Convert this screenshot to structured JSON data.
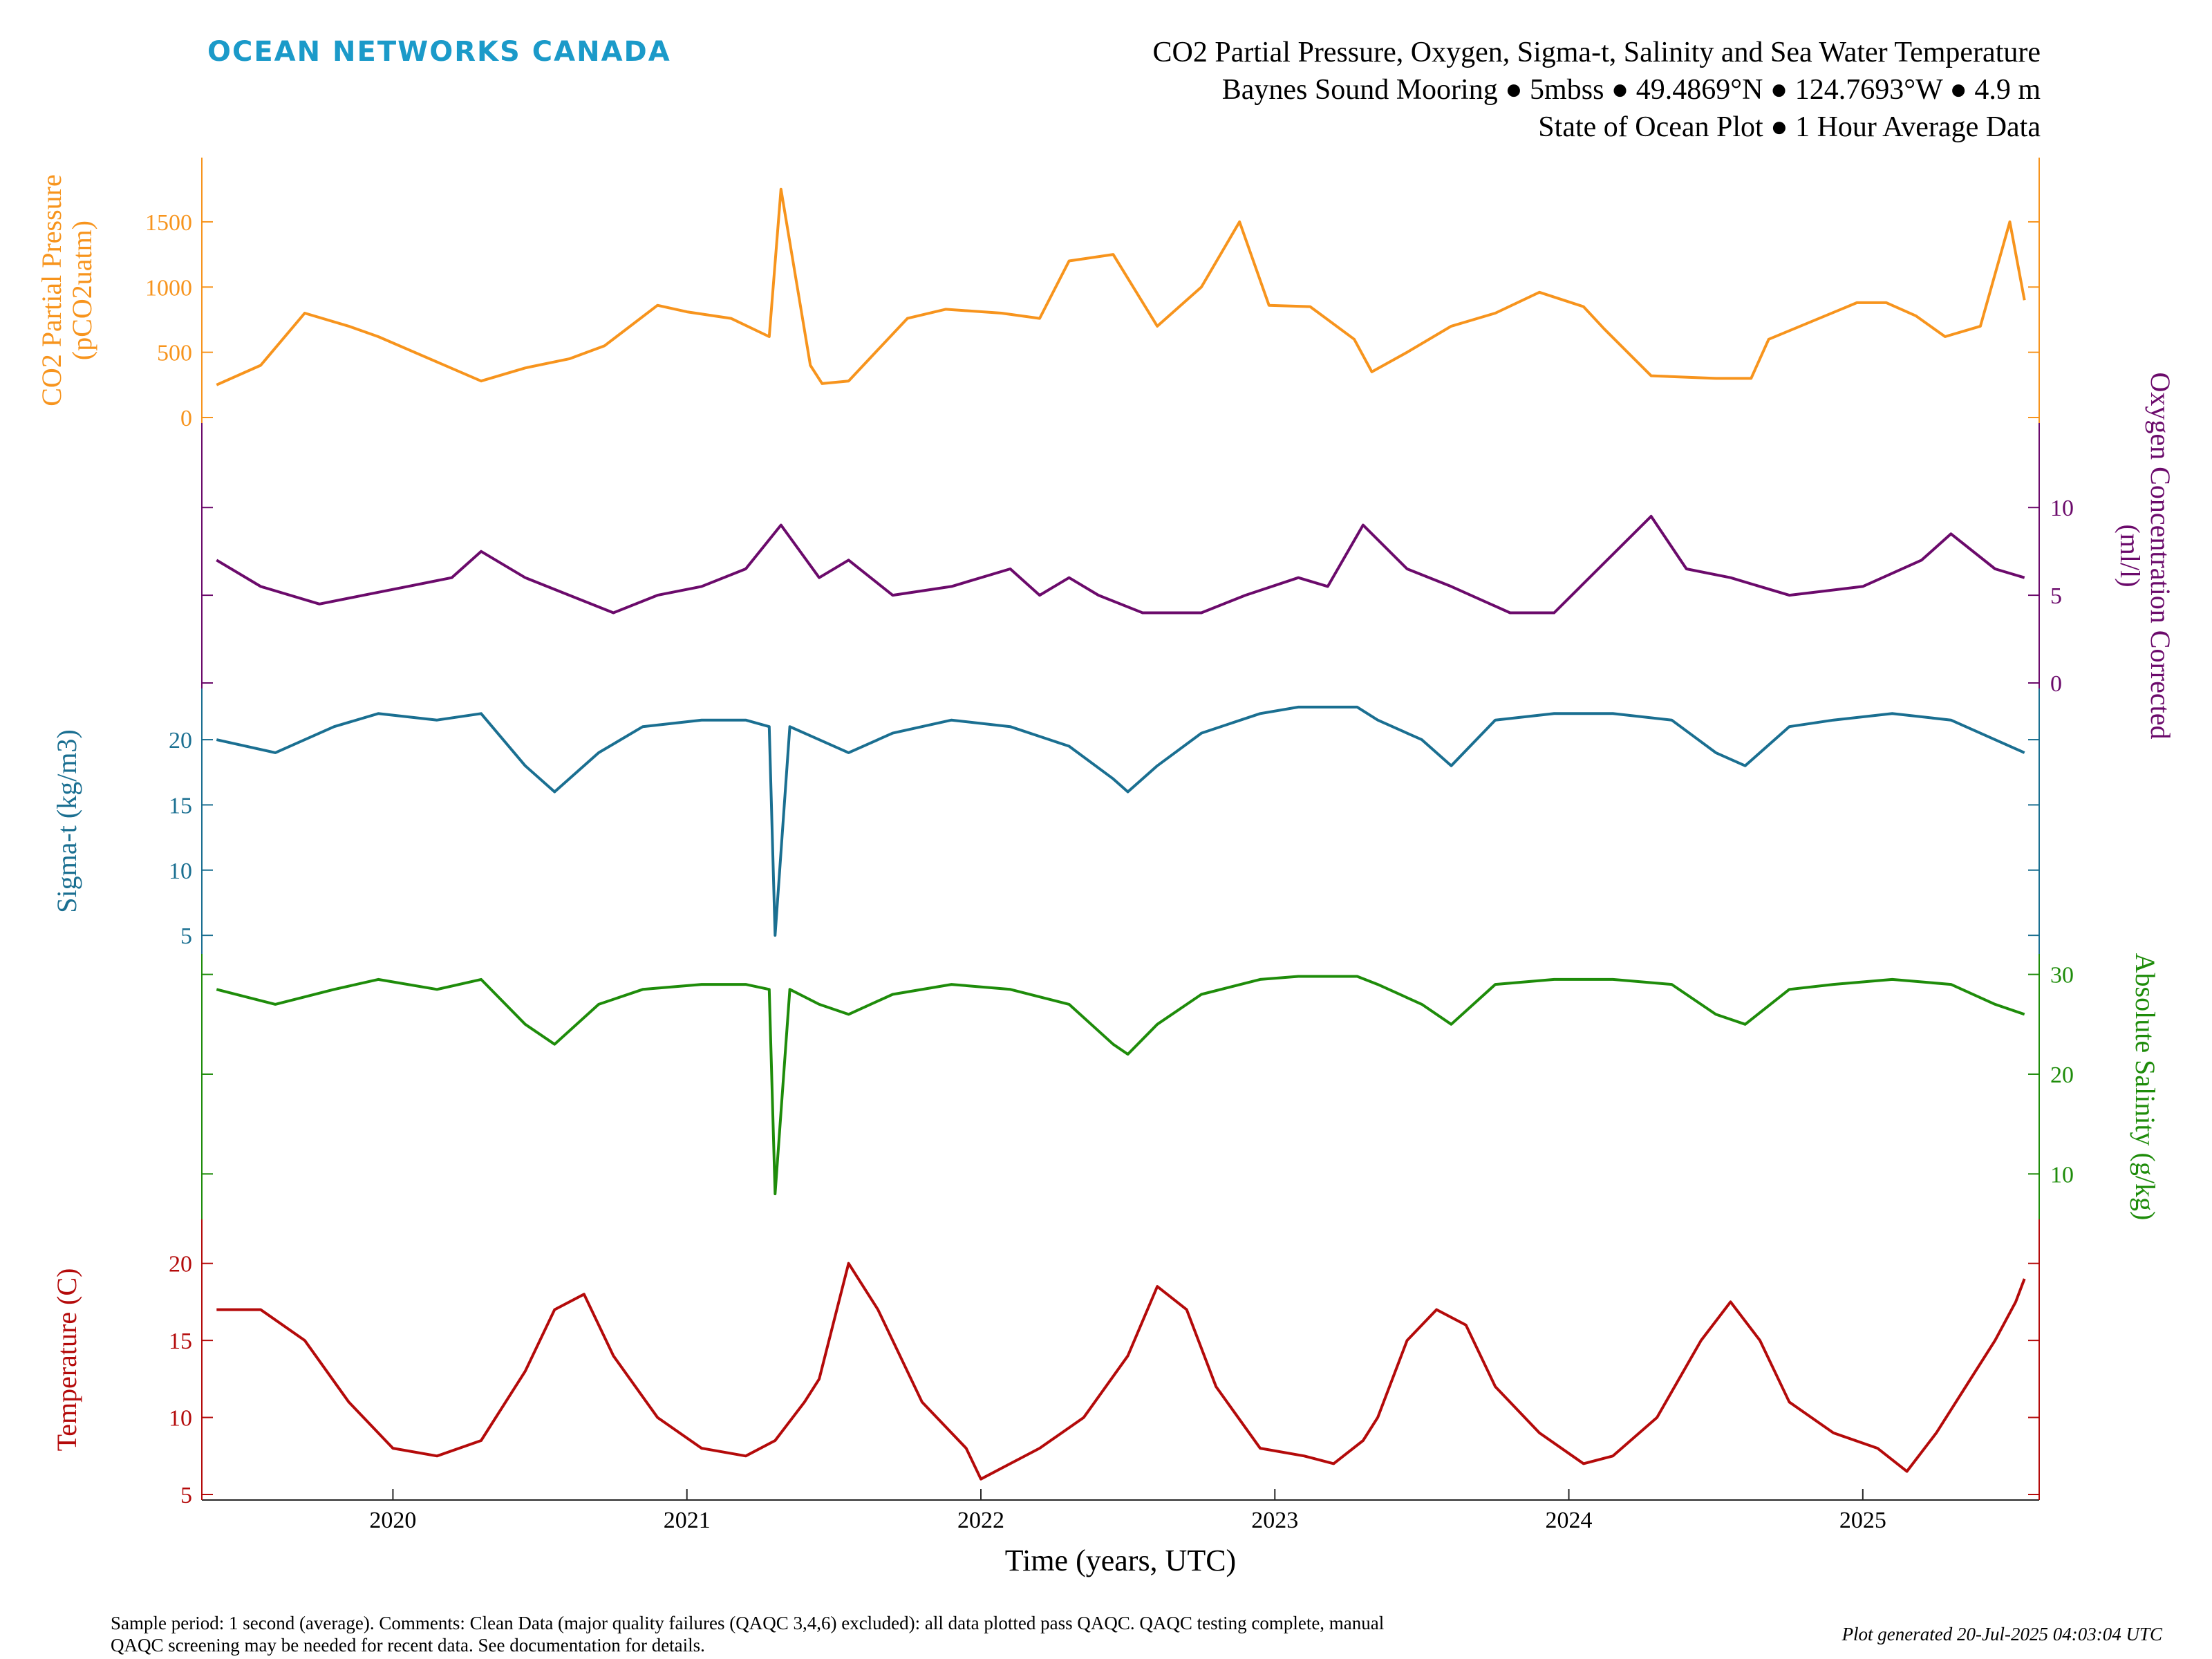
{
  "header": {
    "brand": "OCEAN NETWORKS CANADA",
    "title_line1": "CO2 Partial Pressure, Oxygen, Sigma-t, Salinity and Sea Water Temperature",
    "title_line2": "Baynes Sound Mooring ● 5mbss ● 49.4869°N ● 124.7693°W ● 4.9 m",
    "title_line3": "State of Ocean Plot ● 1 Hour Average Data"
  },
  "footer": {
    "note_line1": "Sample period: 1 second (average). Comments: Clean Data (major quality failures (QAQC 3,4,6) excluded): all data plotted pass QAQC. QAQC testing complete, manual",
    "note_line2": "QAQC screening may be needed for recent data. See documentation for details.",
    "generated": "Plot generated 20-Jul-2025 04:03:04 UTC"
  },
  "colors": {
    "co2": "#f7941d",
    "oxygen": "#6b0a6b",
    "sigma": "#1a6f91",
    "salinity": "#1e8c0a",
    "temperature": "#b40a0a",
    "brand": "#1b9ac9",
    "axis": "#262626"
  },
  "chart_data": [
    {
      "type": "line",
      "name": "co2",
      "ylabel_line1": "CO2 Partial Pressure",
      "ylabel_line2": "(pCO2uatm)",
      "axis_side": "left",
      "ylim": [
        0,
        1950
      ],
      "yticks": [
        0,
        500,
        1000,
        1500
      ],
      "series": [
        {
          "values": [
            [
              2019.4,
              250
            ],
            [
              2019.55,
              400
            ],
            [
              2019.7,
              800
            ],
            [
              2019.85,
              700
            ],
            [
              2019.95,
              620
            ],
            [
              2020.3,
              280
            ],
            [
              2020.45,
              380
            ],
            [
              2020.6,
              450
            ],
            [
              2020.72,
              550
            ],
            [
              2020.9,
              860
            ],
            [
              2021.0,
              810
            ],
            [
              2021.15,
              760
            ],
            [
              2021.28,
              620
            ],
            [
              2021.32,
              1750
            ],
            [
              2021.42,
              400
            ],
            [
              2021.46,
              260
            ],
            [
              2021.55,
              280
            ],
            [
              2021.65,
              520
            ],
            [
              2021.75,
              760
            ],
            [
              2021.88,
              830
            ],
            [
              2022.07,
              800
            ],
            [
              2022.2,
              760
            ],
            [
              2022.3,
              1200
            ],
            [
              2022.45,
              1250
            ],
            [
              2022.6,
              700
            ],
            [
              2022.75,
              1000
            ],
            [
              2022.88,
              1500
            ],
            [
              2022.98,
              860
            ],
            [
              2023.12,
              850
            ],
            [
              2023.27,
              600
            ],
            [
              2023.33,
              350
            ],
            [
              2023.45,
              500
            ],
            [
              2023.6,
              700
            ],
            [
              2023.75,
              800
            ],
            [
              2023.9,
              960
            ],
            [
              2024.05,
              850
            ],
            [
              2024.12,
              680
            ],
            [
              2024.28,
              320
            ],
            [
              2024.5,
              300
            ],
            [
              2024.62,
              300
            ],
            [
              2024.68,
              600
            ],
            [
              2024.98,
              880
            ],
            [
              2025.08,
              880
            ],
            [
              2025.18,
              780
            ],
            [
              2025.28,
              620
            ],
            [
              2025.4,
              700
            ],
            [
              2025.5,
              1500
            ],
            [
              2025.55,
              900
            ]
          ]
        }
      ]
    },
    {
      "type": "line",
      "name": "oxygen",
      "ylabel_line1": "Oxygen Concentration Corrected",
      "ylabel_line2": "(ml/l)",
      "axis_side": "right",
      "ylim": [
        0,
        14.5
      ],
      "yticks": [
        0,
        5,
        10
      ],
      "series": [
        {
          "values": [
            [
              2019.4,
              7
            ],
            [
              2019.55,
              5.5
            ],
            [
              2019.75,
              4.5
            ],
            [
              2019.9,
              5
            ],
            [
              2020.05,
              5.5
            ],
            [
              2020.2,
              6
            ],
            [
              2020.3,
              7.5
            ],
            [
              2020.45,
              6
            ],
            [
              2020.6,
              5
            ],
            [
              2020.75,
              4
            ],
            [
              2020.9,
              5
            ],
            [
              2021.05,
              5.5
            ],
            [
              2021.2,
              6.5
            ],
            [
              2021.32,
              9
            ],
            [
              2021.45,
              6
            ],
            [
              2021.55,
              7
            ],
            [
              2021.7,
              5
            ],
            [
              2021.9,
              5.5
            ],
            [
              2022.1,
              6.5
            ],
            [
              2022.2,
              5
            ],
            [
              2022.3,
              6
            ],
            [
              2022.4,
              5
            ],
            [
              2022.55,
              4
            ],
            [
              2022.75,
              4
            ],
            [
              2022.9,
              5
            ],
            [
              2023.08,
              6
            ],
            [
              2023.18,
              5.5
            ],
            [
              2023.3,
              9
            ],
            [
              2023.45,
              6.5
            ],
            [
              2023.6,
              5.5
            ],
            [
              2023.8,
              4
            ],
            [
              2023.95,
              4
            ],
            [
              2024.28,
              9.5
            ],
            [
              2024.4,
              6.5
            ],
            [
              2024.55,
              6
            ],
            [
              2024.75,
              5
            ],
            [
              2025.0,
              5.5
            ],
            [
              2025.2,
              7
            ],
            [
              2025.3,
              8.5
            ],
            [
              2025.45,
              6.5
            ],
            [
              2025.55,
              6
            ]
          ]
        }
      ]
    },
    {
      "type": "line",
      "name": "sigma",
      "ylabel_line1": "Sigma-t (kg/m3)",
      "ylabel_line2": "",
      "axis_side": "left",
      "ylim": [
        4,
        23.5
      ],
      "yticks": [
        5,
        10,
        15,
        20
      ],
      "series": [
        {
          "values": [
            [
              2019.4,
              20
            ],
            [
              2019.6,
              19
            ],
            [
              2019.8,
              21
            ],
            [
              2019.95,
              22
            ],
            [
              2020.15,
              21.5
            ],
            [
              2020.3,
              22
            ],
            [
              2020.45,
              18
            ],
            [
              2020.55,
              16
            ],
            [
              2020.7,
              19
            ],
            [
              2020.85,
              21
            ],
            [
              2021.05,
              21.5
            ],
            [
              2021.2,
              21.5
            ],
            [
              2021.28,
              21
            ],
            [
              2021.3,
              5
            ],
            [
              2021.35,
              21
            ],
            [
              2021.45,
              20
            ],
            [
              2021.55,
              19
            ],
            [
              2021.7,
              20.5
            ],
            [
              2021.9,
              21.5
            ],
            [
              2022.1,
              21
            ],
            [
              2022.3,
              19.5
            ],
            [
              2022.45,
              17
            ],
            [
              2022.5,
              16
            ],
            [
              2022.6,
              18
            ],
            [
              2022.75,
              20.5
            ],
            [
              2022.95,
              22
            ],
            [
              2023.08,
              22.5
            ],
            [
              2023.28,
              22.5
            ],
            [
              2023.35,
              21.5
            ],
            [
              2023.5,
              20
            ],
            [
              2023.6,
              18
            ],
            [
              2023.75,
              21.5
            ],
            [
              2023.95,
              22
            ],
            [
              2024.15,
              22
            ],
            [
              2024.35,
              21.5
            ],
            [
              2024.5,
              19
            ],
            [
              2024.6,
              18
            ],
            [
              2024.75,
              21
            ],
            [
              2024.9,
              21.5
            ],
            [
              2025.1,
              22
            ],
            [
              2025.3,
              21.5
            ],
            [
              2025.45,
              20
            ],
            [
              2025.55,
              19
            ]
          ]
        }
      ]
    },
    {
      "type": "line",
      "name": "salinity",
      "ylabel_line1": "Absolute Salinity (g/kg)",
      "ylabel_line2": "",
      "axis_side": "right",
      "ylim": [
        6,
        31.5
      ],
      "yticks": [
        10,
        20,
        30
      ],
      "series": [
        {
          "values": [
            [
              2019.4,
              28.5
            ],
            [
              2019.6,
              27
            ],
            [
              2019.8,
              28.5
            ],
            [
              2019.95,
              29.5
            ],
            [
              2020.15,
              28.5
            ],
            [
              2020.3,
              29.5
            ],
            [
              2020.45,
              25
            ],
            [
              2020.55,
              23
            ],
            [
              2020.7,
              27
            ],
            [
              2020.85,
              28.5
            ],
            [
              2021.05,
              29
            ],
            [
              2021.2,
              29
            ],
            [
              2021.28,
              28.5
            ],
            [
              2021.3,
              8
            ],
            [
              2021.35,
              28.5
            ],
            [
              2021.45,
              27
            ],
            [
              2021.55,
              26
            ],
            [
              2021.7,
              28
            ],
            [
              2021.9,
              29
            ],
            [
              2022.1,
              28.5
            ],
            [
              2022.3,
              27
            ],
            [
              2022.45,
              23
            ],
            [
              2022.5,
              22
            ],
            [
              2022.6,
              25
            ],
            [
              2022.75,
              28
            ],
            [
              2022.95,
              29.5
            ],
            [
              2023.08,
              29.8
            ],
            [
              2023.28,
              29.8
            ],
            [
              2023.35,
              29
            ],
            [
              2023.5,
              27
            ],
            [
              2023.6,
              25
            ],
            [
              2023.75,
              29
            ],
            [
              2023.95,
              29.5
            ],
            [
              2024.15,
              29.5
            ],
            [
              2024.35,
              29
            ],
            [
              2024.5,
              26
            ],
            [
              2024.6,
              25
            ],
            [
              2024.75,
              28.5
            ],
            [
              2024.9,
              29
            ],
            [
              2025.1,
              29.5
            ],
            [
              2025.3,
              29
            ],
            [
              2025.45,
              27
            ],
            [
              2025.55,
              26
            ]
          ]
        }
      ]
    },
    {
      "type": "line",
      "name": "temperature",
      "ylabel_line1": "Temperature (C)",
      "ylabel_line2": "",
      "axis_side": "left",
      "ylim": [
        5,
        22.5
      ],
      "yticks": [
        5,
        10,
        15,
        20
      ],
      "series": [
        {
          "values": [
            [
              2019.4,
              17
            ],
            [
              2019.55,
              17
            ],
            [
              2019.7,
              15
            ],
            [
              2019.85,
              11
            ],
            [
              2020.0,
              8
            ],
            [
              2020.15,
              7.5
            ],
            [
              2020.3,
              8.5
            ],
            [
              2020.45,
              13
            ],
            [
              2020.55,
              17
            ],
            [
              2020.65,
              18
            ],
            [
              2020.75,
              14
            ],
            [
              2020.9,
              10
            ],
            [
              2021.05,
              8
            ],
            [
              2021.2,
              7.5
            ],
            [
              2021.3,
              8.5
            ],
            [
              2021.4,
              11
            ],
            [
              2021.45,
              12.5
            ],
            [
              2021.55,
              20
            ],
            [
              2021.65,
              17
            ],
            [
              2021.8,
              11
            ],
            [
              2021.95,
              8
            ],
            [
              2022.0,
              6
            ],
            [
              2022.1,
              7
            ],
            [
              2022.2,
              8
            ],
            [
              2022.35,
              10
            ],
            [
              2022.5,
              14
            ],
            [
              2022.6,
              18.5
            ],
            [
              2022.7,
              17
            ],
            [
              2022.8,
              12
            ],
            [
              2022.95,
              8
            ],
            [
              2023.1,
              7.5
            ],
            [
              2023.2,
              7
            ],
            [
              2023.3,
              8.5
            ],
            [
              2023.35,
              10
            ],
            [
              2023.45,
              15
            ],
            [
              2023.55,
              17
            ],
            [
              2023.65,
              16
            ],
            [
              2023.75,
              12
            ],
            [
              2023.9,
              9
            ],
            [
              2024.05,
              7
            ],
            [
              2024.15,
              7.5
            ],
            [
              2024.3,
              10
            ],
            [
              2024.45,
              15
            ],
            [
              2024.55,
              17.5
            ],
            [
              2024.65,
              15
            ],
            [
              2024.75,
              11
            ],
            [
              2024.9,
              9
            ],
            [
              2025.05,
              8
            ],
            [
              2025.15,
              6.5
            ],
            [
              2025.25,
              9
            ],
            [
              2025.35,
              12
            ],
            [
              2025.45,
              15
            ],
            [
              2025.52,
              17.5
            ],
            [
              2025.55,
              19
            ]
          ]
        }
      ]
    }
  ],
  "x_axis": {
    "label": "Time (years, UTC)",
    "ticks": [
      2020,
      2021,
      2022,
      2023,
      2024,
      2025
    ],
    "tick_labels": [
      "2020",
      "2021",
      "2022",
      "2023",
      "2024",
      "2025"
    ],
    "xlim": [
      2019.35,
      2025.6
    ]
  }
}
